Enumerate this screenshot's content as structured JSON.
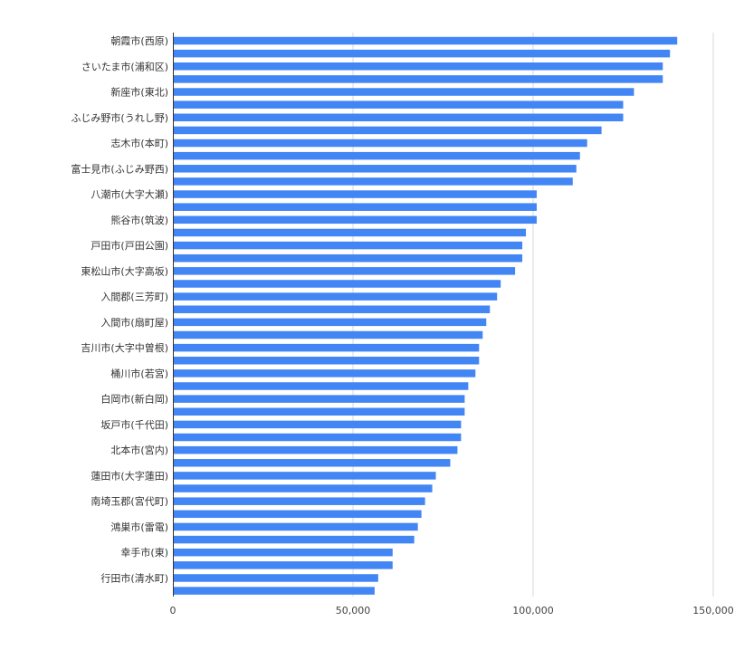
{
  "chart_data": {
    "type": "bar",
    "orientation": "horizontal",
    "title": "",
    "xlabel": "",
    "ylabel": "",
    "xlim": [
      0,
      150000
    ],
    "x_ticks": [
      0,
      50000,
      100000,
      150000
    ],
    "x_tick_labels": [
      "0",
      "50,000",
      "100,000",
      "150,000"
    ],
    "grid": true,
    "legend": "none",
    "bar_color": "#4285F4",
    "categories": [
      "朝霞市(西原)",
      "",
      "さいたま市(浦和区)",
      "",
      "新座市(東北)",
      "",
      "ふじみ野市(うれし野)",
      "",
      "志木市(本町)",
      "",
      "富士見市(ふじみ野西)",
      "",
      "八潮市(大字大瀬)",
      "",
      "熊谷市(筑波)",
      "",
      "戸田市(戸田公園)",
      "",
      "東松山市(大字高坂)",
      "",
      "入間郡(三芳町)",
      "",
      "入間市(扇町屋)",
      "",
      "吉川市(大字中曽根)",
      "",
      "桶川市(若宮)",
      "",
      "白岡市(新白岡)",
      "",
      "坂戸市(千代田)",
      "",
      "北本市(宮内)",
      "",
      "蓮田市(大字蓮田)",
      "",
      "南埼玉郡(宮代町)",
      "",
      "鴻巣市(雷電)",
      "",
      "幸手市(東)",
      "",
      "行田市(清水町)",
      ""
    ],
    "values": [
      140000,
      138000,
      136000,
      136000,
      128000,
      125000,
      125000,
      119000,
      115000,
      113000,
      112000,
      111000,
      101000,
      101000,
      101000,
      98000,
      97000,
      97000,
      95000,
      91000,
      90000,
      88000,
      87000,
      86000,
      85000,
      85000,
      84000,
      82000,
      81000,
      81000,
      80000,
      80000,
      79000,
      77000,
      73000,
      72000,
      70000,
      69000,
      68000,
      67000,
      61000,
      61000,
      57000,
      56000
    ]
  }
}
